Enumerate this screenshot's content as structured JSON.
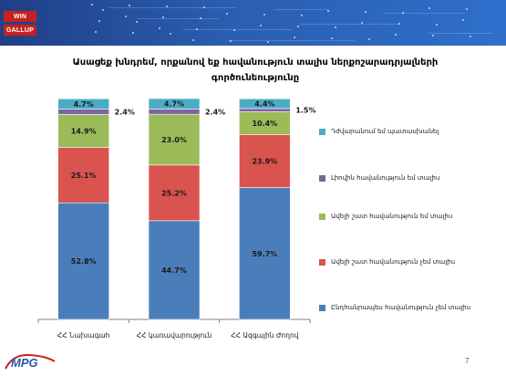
{
  "header": {
    "logos": [
      "WIN",
      "GALLUP"
    ]
  },
  "chart_data": {
    "type": "bar",
    "stacked": true,
    "title": "Ասացեք խնդրեմ, որքանով եք հավանություն տալիս ներքոշարադրյալների գործունեությունը",
    "title_lines": [
      "Ասացեք խնդրեմ, որքանով եք հավանություն տալիս ներքոշարադրյալների",
      "գործունեությունը"
    ],
    "categories": [
      "ՀՀ Նախագահ",
      "ՀՀ կառավարություն",
      "ՀՀ Ազգային Ժողով"
    ],
    "ylim": [
      0,
      100
    ],
    "legend_position": "right",
    "series": [
      {
        "name": "Ընդհանրապես հավանություն չեմ տալիս",
        "values": [
          52.8,
          44.7,
          59.7
        ],
        "labels": [
          "52.8%",
          "44.7%",
          "59.7%"
        ],
        "color": "#4a7ebb"
      },
      {
        "name": "Ավելի շատ հավանություն չեմ տալիս",
        "values": [
          25.1,
          25.2,
          23.9
        ],
        "labels": [
          "25.1%",
          "25.2%",
          "23.9%"
        ],
        "color": "#d9534f"
      },
      {
        "name": "Ավելի շատ հավանություն եմ տալիս",
        "values": [
          14.9,
          23.0,
          10.4
        ],
        "labels": [
          "14.9%",
          "23.0%",
          "10.4%"
        ],
        "color": "#9bbb59"
      },
      {
        "name": "Լիովին հավանություն եմ տալիս",
        "values": [
          2.4,
          2.4,
          1.5
        ],
        "labels": [
          "2.4%",
          "2.4%",
          "1.5%"
        ],
        "color": "#8064a2"
      },
      {
        "name": "Դժվարանում եմ պատասխանել",
        "values": [
          4.7,
          4.7,
          4.4
        ],
        "labels": [
          "4.7%",
          "4.7%",
          "4.4%"
        ],
        "color": "#4bacc6"
      }
    ],
    "legend_order": [
      4,
      3,
      2,
      1,
      0
    ]
  },
  "footer": {
    "logo_text": "MPG",
    "page_number": "7"
  }
}
